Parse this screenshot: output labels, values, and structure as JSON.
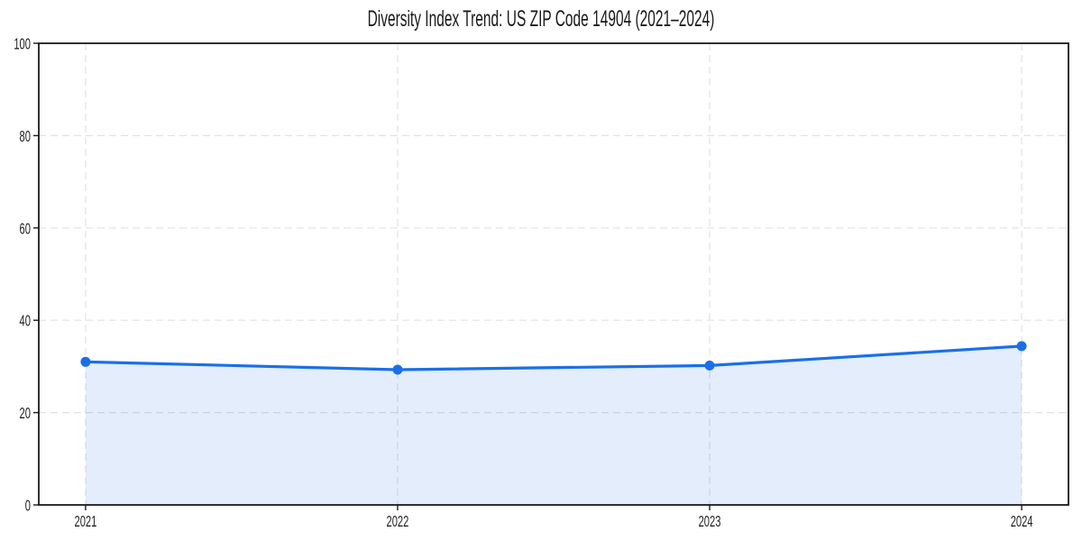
{
  "chart_data": {
    "type": "area",
    "title": "Diversity Index Trend: US ZIP Code 14904 (2021–2024)",
    "x": [
      2021,
      2022,
      2023,
      2024
    ],
    "values": [
      31.0,
      29.3,
      30.2,
      34.4
    ],
    "xticks": [
      "2021",
      "2022",
      "2023",
      "2024"
    ],
    "yticks": [
      0,
      20,
      40,
      60,
      80,
      100
    ],
    "ylim": [
      0,
      100
    ],
    "xlabel": "",
    "ylabel": "",
    "legend": "none",
    "grid": {
      "style": "dashed",
      "axes": "both"
    },
    "colors": {
      "line": "#1a6fe8",
      "fill": "rgba(26,111,232,0.12)",
      "grid": "#e2e2e2",
      "axis": "#1a1a1a",
      "tick_label": "#1f1f1f",
      "background": "#ffffff"
    }
  }
}
